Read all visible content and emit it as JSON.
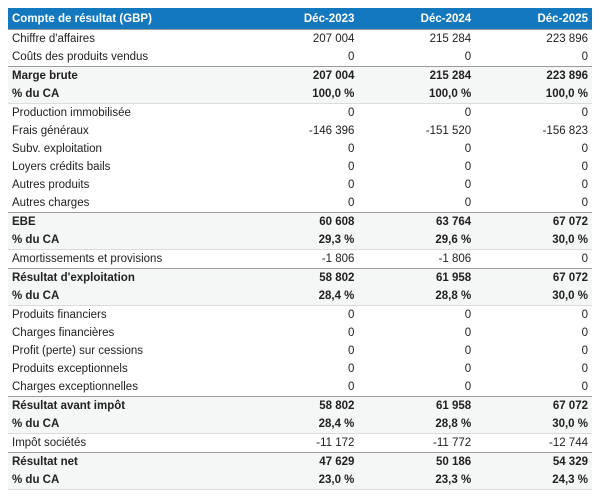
{
  "table": {
    "header": {
      "label": "Compte de résultat (GBP)",
      "columns": [
        "Déc-2023",
        "Déc-2024",
        "Déc-2025"
      ]
    },
    "rows": [
      {
        "label": "Chiffre d'affaires",
        "values": [
          "207 004",
          "215 284",
          "223 896"
        ],
        "style": "normal"
      },
      {
        "label": "Coûts des produits vendus",
        "values": [
          "0",
          "0",
          "0"
        ],
        "style": "normal"
      },
      {
        "label": "Marge brute",
        "values": [
          "207 004",
          "215 284",
          "223 896"
        ],
        "style": "section-start"
      },
      {
        "label": "% du CA",
        "values": [
          "100,0 %",
          "100,0 %",
          "100,0 %"
        ],
        "style": "section-end"
      },
      {
        "label": "Production immobilisée",
        "values": [
          "0",
          "0",
          "0"
        ],
        "style": "normal"
      },
      {
        "label": "Frais généraux",
        "values": [
          "-146 396",
          "-151 520",
          "-156 823"
        ],
        "style": "normal"
      },
      {
        "label": "Subv. exploitation",
        "values": [
          "0",
          "0",
          "0"
        ],
        "style": "normal"
      },
      {
        "label": "Loyers crédits bails",
        "values": [
          "0",
          "0",
          "0"
        ],
        "style": "normal"
      },
      {
        "label": "Autres produits",
        "values": [
          "0",
          "0",
          "0"
        ],
        "style": "normal"
      },
      {
        "label": "Autres charges",
        "values": [
          "0",
          "0",
          "0"
        ],
        "style": "normal"
      },
      {
        "label": "EBE",
        "values": [
          "60 608",
          "63 764",
          "67 072"
        ],
        "style": "section-start"
      },
      {
        "label": "% du CA",
        "values": [
          "29,3 %",
          "29,6 %",
          "30,0 %"
        ],
        "style": "section-end"
      },
      {
        "label": "Amortissements et provisions",
        "values": [
          "-1 806",
          "-1 806",
          "0"
        ],
        "style": "normal"
      },
      {
        "label": "Résultat d'exploitation",
        "values": [
          "58 802",
          "61 958",
          "67 072"
        ],
        "style": "section-start"
      },
      {
        "label": "% du CA",
        "values": [
          "28,4 %",
          "28,8 %",
          "30,0 %"
        ],
        "style": "section-end"
      },
      {
        "label": "Produits financiers",
        "values": [
          "0",
          "0",
          "0"
        ],
        "style": "normal"
      },
      {
        "label": "Charges financières",
        "values": [
          "0",
          "0",
          "0"
        ],
        "style": "normal"
      },
      {
        "label": "Profit (perte) sur cessions",
        "values": [
          "0",
          "0",
          "0"
        ],
        "style": "normal"
      },
      {
        "label": "Produits exceptionnels",
        "values": [
          "0",
          "0",
          "0"
        ],
        "style": "normal"
      },
      {
        "label": "Charges exceptionnelles",
        "values": [
          "0",
          "0",
          "0"
        ],
        "style": "normal"
      },
      {
        "label": "Résultat avant impôt",
        "values": [
          "58 802",
          "61 958",
          "67 072"
        ],
        "style": "section-start"
      },
      {
        "label": "% du CA",
        "values": [
          "28,4 %",
          "28,8 %",
          "30,0 %"
        ],
        "style": "section-end"
      },
      {
        "label": "Impôt sociétés",
        "values": [
          "-11 172",
          "-11 772",
          "-12 744"
        ],
        "style": "normal"
      },
      {
        "label": "Résultat net",
        "values": [
          "47 629",
          "50 186",
          "54 329"
        ],
        "style": "section-start"
      },
      {
        "label": "% du CA",
        "values": [
          "23,0 %",
          "23,3 %",
          "24,3 %"
        ],
        "style": "section-end"
      }
    ]
  },
  "colors": {
    "header_bg": "#1478BE",
    "header_text": "#FFFFFF",
    "section_row_bg": "#F5F6F6",
    "body_text": "#212121",
    "border_dark": "#9B9B9B",
    "border_light": "#DCDCDC"
  }
}
